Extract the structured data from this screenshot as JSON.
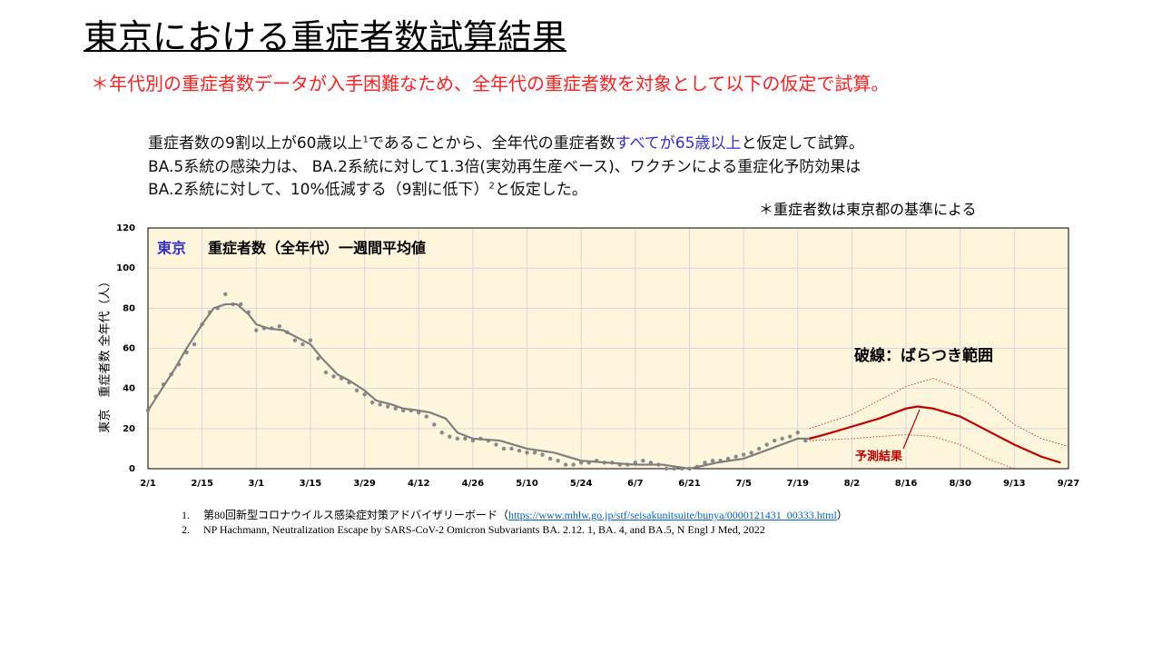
{
  "header": {
    "title": "東京における重症者数試算結果",
    "subtitle": "＊年代別の重症者数データが入手困難なため、全年代の重症者数を対象として以下の仮定で試算。"
  },
  "assumptions": {
    "line1": [
      "重症者数の9割以上が60歳以上",
      "1",
      "であることから、全年代の重症者数",
      "すべてが65歳以上",
      "と仮定して試算。"
    ],
    "line2": "BA.5系統の感染力は、 BA.2系統に対して1.3倍(実効再生産ベース)、ワクチンによる重症化予防効果は",
    "line3": [
      "BA.2系統に対して、10%低減する（9割に低下）",
      "2",
      "と仮定した。"
    ],
    "note": "＊重症者数は東京都の基準による"
  },
  "chart_data": {
    "type": "line",
    "title_region": "東京",
    "title": "重症者数（全年代）一週間平均値",
    "y_label": "東京　重症者数 全年代（人）",
    "annotation": "破線：ばらつき範囲",
    "forecast_label": "予測結果",
    "background": "#fdf5dc",
    "grid": true,
    "xlim": [
      0,
      238
    ],
    "xticks": [
      {
        "value": 0,
        "label": "2/1"
      },
      {
        "value": 14,
        "label": "2/15"
      },
      {
        "value": 28,
        "label": "3/1"
      },
      {
        "value": 42,
        "label": "3/15"
      },
      {
        "value": 56,
        "label": "3/29"
      },
      {
        "value": 70,
        "label": "4/12"
      },
      {
        "value": 84,
        "label": "4/26"
      },
      {
        "value": 98,
        "label": "5/10"
      },
      {
        "value": 112,
        "label": "5/24"
      },
      {
        "value": 126,
        "label": "6/7"
      },
      {
        "value": 140,
        "label": "6/21"
      },
      {
        "value": 154,
        "label": "7/5"
      },
      {
        "value": 168,
        "label": "7/19"
      },
      {
        "value": 182,
        "label": "8/2"
      },
      {
        "value": 196,
        "label": "8/16"
      },
      {
        "value": 210,
        "label": "8/30"
      },
      {
        "value": 224,
        "label": "9/13"
      },
      {
        "value": 238,
        "label": "9/27"
      }
    ],
    "ylim": [
      0,
      120
    ],
    "yticks": [
      0,
      20,
      40,
      60,
      80,
      100,
      120
    ],
    "series": [
      {
        "style": "points",
        "color": "#8a8a8a",
        "x": [
          0,
          2,
          4,
          6,
          8,
          10,
          12,
          14,
          16,
          18,
          20,
          22,
          24,
          26,
          28,
          30,
          32,
          34,
          36,
          38,
          40,
          42,
          44,
          46,
          48,
          50,
          52,
          54,
          56,
          58,
          60,
          62,
          64,
          66,
          68,
          70,
          72,
          74,
          76,
          78,
          80,
          82,
          84,
          86,
          88,
          90,
          92,
          94,
          96,
          98,
          100,
          102,
          104,
          106,
          108,
          110,
          112,
          114,
          116,
          118,
          120,
          122,
          124,
          126,
          128,
          130,
          132,
          134,
          136,
          138,
          140,
          142,
          144,
          146,
          148,
          150,
          152,
          154,
          156,
          158,
          160,
          162,
          164,
          166,
          168,
          170
        ],
        "values": [
          29,
          36,
          42,
          47,
          52,
          58,
          62,
          72,
          78,
          80,
          87,
          82,
          82,
          78,
          69,
          70,
          70,
          71,
          68,
          64,
          62,
          64,
          55,
          48,
          46,
          45,
          43,
          39,
          37,
          33,
          32,
          31,
          30,
          29,
          29,
          28,
          26,
          22,
          18,
          16,
          15,
          15,
          14,
          15,
          14,
          12,
          10,
          10,
          9,
          8,
          8,
          7,
          5,
          4,
          2,
          2,
          3,
          3,
          4,
          3,
          3,
          2,
          2,
          3,
          4,
          3,
          2,
          0,
          0,
          0,
          0,
          1,
          3,
          4,
          4,
          5,
          6,
          7,
          8,
          10,
          12,
          14,
          15,
          16,
          18,
          14
        ]
      },
      {
        "style": "solid",
        "color": "#7f7f7f",
        "x": [
          0,
          3,
          7,
          10,
          14,
          17,
          20,
          23,
          26,
          28,
          31,
          35,
          38,
          42,
          45,
          49,
          52,
          56,
          59,
          63,
          66,
          70,
          73,
          77,
          80,
          84,
          91,
          98,
          105,
          112,
          119,
          126,
          133,
          140,
          147,
          154,
          161,
          168,
          171
        ],
        "values": [
          29,
          38,
          50,
          60,
          72,
          80,
          82,
          82,
          77,
          72,
          70,
          69,
          66,
          62,
          55,
          47,
          44,
          39,
          34,
          32,
          30,
          29,
          28,
          25,
          18,
          15,
          14,
          10,
          8,
          4,
          3,
          2,
          2,
          0,
          3,
          5,
          10,
          15,
          15
        ]
      },
      {
        "style": "solid",
        "color": "#c00000",
        "x": [
          171,
          175,
          182,
          189,
          196,
          199,
          203,
          210,
          217,
          224,
          231,
          236
        ],
        "values": [
          15,
          17,
          21,
          25,
          30,
          31,
          30,
          26,
          19,
          12,
          6,
          3
        ]
      },
      {
        "style": "dotted",
        "color": "#d04040",
        "x": [
          171,
          182,
          189,
          196,
          203,
          210,
          217,
          224,
          231,
          238
        ],
        "values": [
          20,
          27,
          34,
          41,
          45,
          40,
          33,
          22,
          15,
          11
        ]
      },
      {
        "style": "dotted",
        "color": "#d04040",
        "x": [
          171,
          182,
          189,
          196,
          203,
          210,
          217,
          224
        ],
        "values": [
          14,
          15,
          16,
          17,
          16,
          12,
          5,
          0
        ]
      }
    ]
  },
  "references": [
    {
      "number": "1.",
      "text": "第80回新型コロナウイルス感染症対策アドバイザリーボード（",
      "link": "https://www.mhlw.go.jp/stf/seisakunitsuite/bunya/0000121431_00333.html",
      "close": "）"
    },
    {
      "number": "2.",
      "text": "NP Hachmann, Neutralization Escape by SARS-CoV-2  Omicron  Subvariants BA. 2.12. 1, BA. 4, and BA.5, N Engl J Med, 2022"
    }
  ]
}
